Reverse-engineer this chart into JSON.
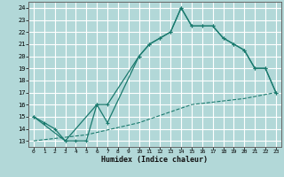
{
  "xlabel": "Humidex (Indice chaleur)",
  "background_color": "#b2d8d8",
  "grid_color": "#ffffff",
  "line_color": "#1a7a6e",
  "xlim": [
    -0.5,
    23.5
  ],
  "ylim": [
    12.5,
    24.5
  ],
  "xticks": [
    0,
    1,
    2,
    3,
    4,
    5,
    6,
    7,
    8,
    9,
    10,
    11,
    12,
    13,
    14,
    15,
    16,
    17,
    18,
    19,
    20,
    21,
    22,
    23
  ],
  "yticks": [
    13,
    14,
    15,
    16,
    17,
    18,
    19,
    20,
    21,
    22,
    23,
    24
  ],
  "line1_x": [
    0,
    1,
    2,
    3,
    4,
    5,
    6,
    7,
    10,
    11,
    12,
    13,
    14,
    15,
    16,
    17,
    18,
    19,
    20,
    21,
    22,
    23
  ],
  "line1_y": [
    15.0,
    14.5,
    14.0,
    13.0,
    13.0,
    13.0,
    16.0,
    14.5,
    20.0,
    21.0,
    21.5,
    22.0,
    24.0,
    22.5,
    22.5,
    22.5,
    21.5,
    21.0,
    20.5,
    19.0,
    19.0,
    17.0
  ],
  "line2_x": [
    0,
    3,
    6,
    7,
    10,
    11,
    12,
    13,
    14,
    15,
    16,
    17,
    18,
    19,
    20,
    21,
    22,
    23
  ],
  "line2_y": [
    15.0,
    13.0,
    16.0,
    16.0,
    20.0,
    21.0,
    21.5,
    22.0,
    24.0,
    22.5,
    22.5,
    22.5,
    21.5,
    21.0,
    20.5,
    19.0,
    19.0,
    17.0
  ],
  "line3_x": [
    0,
    5,
    10,
    15,
    20,
    23
  ],
  "line3_y": [
    13.0,
    13.5,
    14.5,
    16.0,
    16.5,
    17.0
  ]
}
